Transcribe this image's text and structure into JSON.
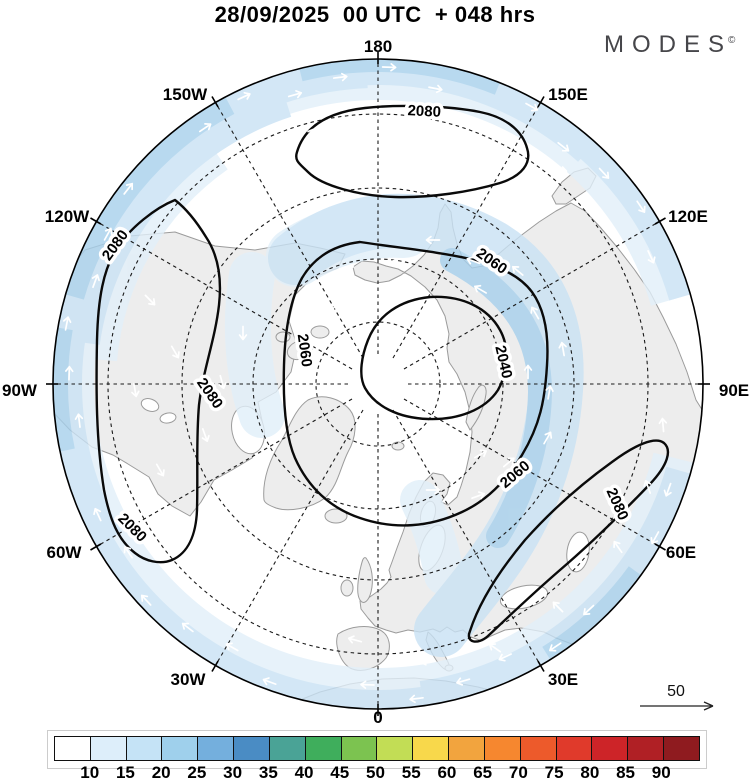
{
  "header": {
    "title": "28/09/2025  00 UTC  + 048 hrs",
    "logo_text": "MODES",
    "logo_mark": "©"
  },
  "map": {
    "lon_labels": [
      "180",
      "150W",
      "150E",
      "120W",
      "120E",
      "90W",
      "90E",
      "60W",
      "60E",
      "30W",
      "30E",
      "0"
    ],
    "contour_levels": [
      2040,
      2060,
      2080
    ],
    "contour_labels": [
      {
        "text": "2080"
      },
      {
        "text": "2080"
      },
      {
        "text": "2080"
      },
      {
        "text": "2080"
      },
      {
        "text": "2080"
      },
      {
        "text": "2060"
      },
      {
        "text": "2060"
      },
      {
        "text": "2060"
      },
      {
        "text": "2040"
      }
    ],
    "shading_colors": {
      "pale": "#e1eff9",
      "light": "#c9e2f4",
      "medium": "#a7d0ec"
    },
    "land_color": "#ededed",
    "coast_color": "#9b9b9b"
  },
  "legend": {
    "wind_scale_value": "50"
  },
  "colorbar": {
    "ticks": [
      "10",
      "15",
      "20",
      "25",
      "30",
      "35",
      "40",
      "45",
      "50",
      "55",
      "60",
      "65",
      "70",
      "75",
      "80",
      "85",
      "90"
    ],
    "colors": [
      "#ffffff",
      "#ddeefa",
      "#c5e3f6",
      "#9fd0ec",
      "#74afdd",
      "#4a8cc4",
      "#4aa396",
      "#3fae5c",
      "#7cc350",
      "#c2dd55",
      "#f8d84b",
      "#f2a43e",
      "#f6872f",
      "#ed5a2b",
      "#e03a2b",
      "#cd2428",
      "#b02025",
      "#8f1b1f"
    ]
  }
}
